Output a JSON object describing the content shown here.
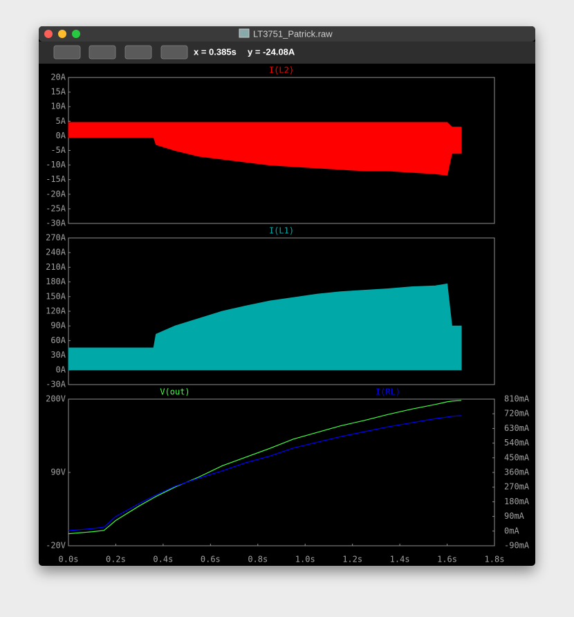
{
  "window": {
    "title": "LT3751_Patrick.raw",
    "cursor_x": "x = 0.385s",
    "cursor_y": "y = -24.08A"
  },
  "chart_data": [
    {
      "type": "range_area",
      "x": [
        0,
        0.1,
        0.15,
        0.2,
        0.3,
        0.36,
        0.37,
        0.45,
        0.55,
        0.65,
        0.75,
        0.85,
        0.95,
        1.05,
        1.15,
        1.25,
        1.35,
        1.45,
        1.55,
        1.6,
        1.62,
        1.66
      ],
      "series": [
        {
          "name": "I(L2)",
          "color": "#ff0000",
          "high": [
            4.6,
            4.6,
            4.6,
            4.6,
            4.6,
            4.6,
            4.6,
            4.6,
            4.6,
            4.6,
            4.6,
            4.6,
            4.6,
            4.6,
            4.6,
            4.6,
            4.6,
            4.6,
            4.6,
            4.6,
            3,
            3
          ],
          "low": [
            -0.5,
            -0.5,
            -0.5,
            -0.5,
            -0.5,
            -0.5,
            -3,
            -5,
            -7,
            -8,
            -9,
            -10,
            -10.5,
            -11,
            -11.5,
            -12,
            -12,
            -12.5,
            -13,
            -13.5,
            -6,
            -6
          ]
        }
      ],
      "xlim": [
        0,
        1.8
      ],
      "ylim": [
        -30,
        20
      ],
      "yticks": [
        {
          "value": -30,
          "label": "-30A"
        },
        {
          "value": -25,
          "label": "-25A"
        },
        {
          "value": -20,
          "label": "-20A"
        },
        {
          "value": -15,
          "label": "-15A"
        },
        {
          "value": -10,
          "label": "-10A"
        },
        {
          "value": -5,
          "label": "-5A"
        },
        {
          "value": 0,
          "label": "0A"
        },
        {
          "value": 5,
          "label": "5A"
        },
        {
          "value": 10,
          "label": "10A"
        },
        {
          "value": 15,
          "label": "15A"
        },
        {
          "value": 20,
          "label": "20A"
        }
      ]
    },
    {
      "type": "range_area",
      "x": [
        0,
        0.1,
        0.15,
        0.2,
        0.3,
        0.36,
        0.37,
        0.45,
        0.55,
        0.65,
        0.75,
        0.85,
        0.95,
        1.05,
        1.15,
        1.25,
        1.35,
        1.45,
        1.55,
        1.6,
        1.62,
        1.66
      ],
      "series": [
        {
          "name": "I(L1)",
          "color": "#00a8a8",
          "high": [
            45,
            45,
            45,
            45,
            45,
            45,
            73,
            90,
            105,
            120,
            131,
            141,
            148,
            155,
            160,
            163,
            166,
            170,
            172,
            176,
            90,
            90
          ],
          "low": [
            0,
            0,
            0,
            0,
            0,
            0,
            0,
            0,
            0,
            0,
            0,
            0,
            0,
            0,
            0,
            0,
            0,
            0,
            0,
            0,
            0,
            0
          ]
        }
      ],
      "xlim": [
        0,
        1.8
      ],
      "ylim": [
        -30,
        270
      ],
      "yticks": [
        {
          "value": -30,
          "label": "-30A"
        },
        {
          "value": 0,
          "label": "0A"
        },
        {
          "value": 30,
          "label": "30A"
        },
        {
          "value": 60,
          "label": "60A"
        },
        {
          "value": 90,
          "label": "90A"
        },
        {
          "value": 120,
          "label": "120A"
        },
        {
          "value": 150,
          "label": "150A"
        },
        {
          "value": 180,
          "label": "180A"
        },
        {
          "value": 210,
          "label": "210A"
        },
        {
          "value": 240,
          "label": "240A"
        },
        {
          "value": 270,
          "label": "270A"
        }
      ]
    },
    {
      "type": "line",
      "x": [
        0,
        0.1,
        0.15,
        0.2,
        0.3,
        0.36,
        0.37,
        0.45,
        0.55,
        0.65,
        0.75,
        0.85,
        0.95,
        1.05,
        1.15,
        1.25,
        1.35,
        1.45,
        1.55,
        1.6,
        1.62,
        1.66
      ],
      "series": [
        {
          "name": "V(out)",
          "color": "#40ff40",
          "values": [
            -2,
            1,
            3,
            18,
            40,
            52,
            54,
            68,
            83,
            100,
            113,
            126,
            140,
            150,
            160,
            168,
            177,
            185,
            192,
            196,
            197,
            198
          ]
        },
        {
          "name": "I(RL)",
          "color": "#0000ff",
          "axis": "y2",
          "values": [
            3,
            15,
            25,
            90,
            170,
            215,
            222,
            275,
            325,
            370,
            420,
            460,
            510,
            545,
            580,
            610,
            640,
            665,
            690,
            700,
            705,
            708
          ]
        }
      ],
      "xlim": [
        0,
        1.8
      ],
      "ylim": [
        -20,
        200
      ],
      "y2lim": [
        -90,
        810
      ],
      "xticks": [
        {
          "value": 0,
          "label": "0.0s"
        },
        {
          "value": 0.2,
          "label": "0.2s"
        },
        {
          "value": 0.4,
          "label": "0.4s"
        },
        {
          "value": 0.6,
          "label": "0.6s"
        },
        {
          "value": 0.8,
          "label": "0.8s"
        },
        {
          "value": 1.0,
          "label": "1.0s"
        },
        {
          "value": 1.2,
          "label": "1.2s"
        },
        {
          "value": 1.4,
          "label": "1.4s"
        },
        {
          "value": 1.6,
          "label": "1.6s"
        },
        {
          "value": 1.8,
          "label": "1.8s"
        }
      ],
      "yticks": [
        {
          "value": -20,
          "label": "-20V"
        },
        {
          "value": 90,
          "label": "90V"
        },
        {
          "value": 200,
          "label": "200V"
        }
      ],
      "y2ticks": [
        {
          "value": -90,
          "label": "-90mA"
        },
        {
          "value": 0,
          "label": "0mA"
        },
        {
          "value": 90,
          "label": "90mA"
        },
        {
          "value": 180,
          "label": "180mA"
        },
        {
          "value": 270,
          "label": "270mA"
        },
        {
          "value": 360,
          "label": "360mA"
        },
        {
          "value": 450,
          "label": "450mA"
        },
        {
          "value": 540,
          "label": "540mA"
        },
        {
          "value": 630,
          "label": "630mA"
        },
        {
          "value": 720,
          "label": "720mA"
        },
        {
          "value": 810,
          "label": "810mA"
        }
      ]
    }
  ]
}
